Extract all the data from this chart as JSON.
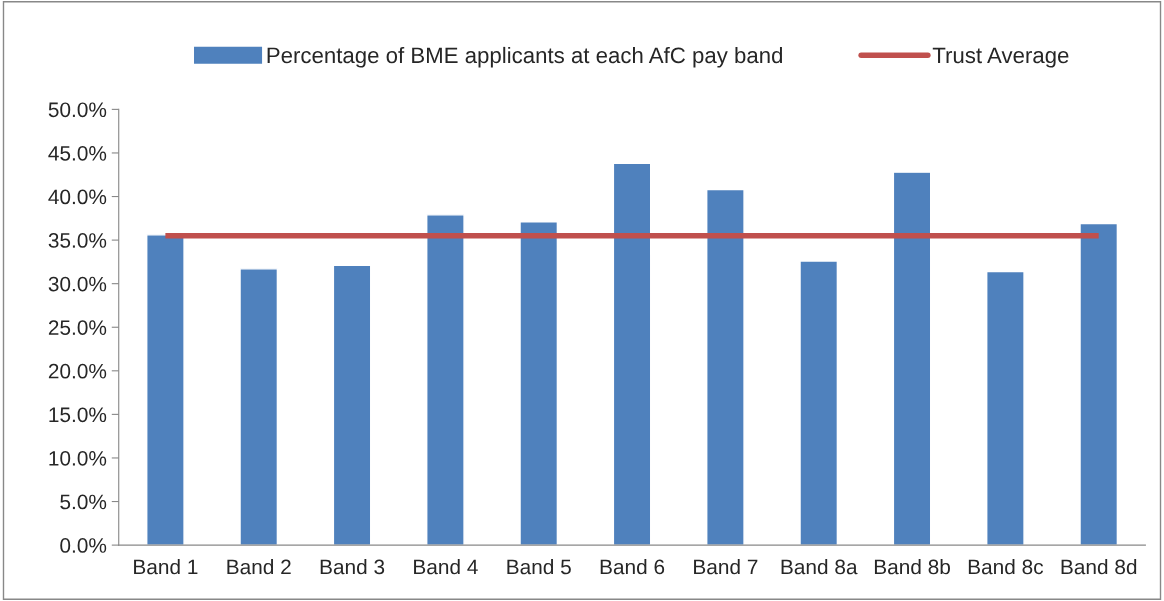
{
  "chart_data": {
    "type": "bar",
    "categories": [
      "Band 1",
      "Band 2",
      "Band 3",
      "Band 4",
      "Band 5",
      "Band 6",
      "Band 7",
      "Band 8a",
      "Band 8b",
      "Band 8c",
      "Band 8d"
    ],
    "series": [
      {
        "name": "Percentage of BME applicants at each AfC pay band",
        "color": "#4f81bd",
        "values": [
          35.6,
          31.7,
          32.1,
          37.9,
          37.1,
          43.8,
          40.8,
          32.6,
          42.8,
          31.4,
          36.9
        ]
      },
      {
        "name": "Trust Average",
        "type": "line",
        "color": "#c0504d",
        "values": [
          35.5,
          35.5,
          35.5,
          35.5,
          35.5,
          35.5,
          35.5,
          35.5,
          35.5,
          35.5,
          35.5
        ]
      }
    ],
    "ylim": [
      0,
      50
    ],
    "yticks": [
      {
        "value": 0,
        "label": "0.0%"
      },
      {
        "value": 5,
        "label": "5.0%"
      },
      {
        "value": 10,
        "label": "10.0%"
      },
      {
        "value": 15,
        "label": "15.0%"
      },
      {
        "value": 20,
        "label": "20.0%"
      },
      {
        "value": 25,
        "label": "25.0%"
      },
      {
        "value": 30,
        "label": "30.0%"
      },
      {
        "value": 35,
        "label": "35.0%"
      },
      {
        "value": 40,
        "label": "40.0%"
      },
      {
        "value": 45,
        "label": "45.0%"
      },
      {
        "value": 50,
        "label": "50.0%"
      }
    ],
    "grid": false,
    "legend": "top"
  }
}
